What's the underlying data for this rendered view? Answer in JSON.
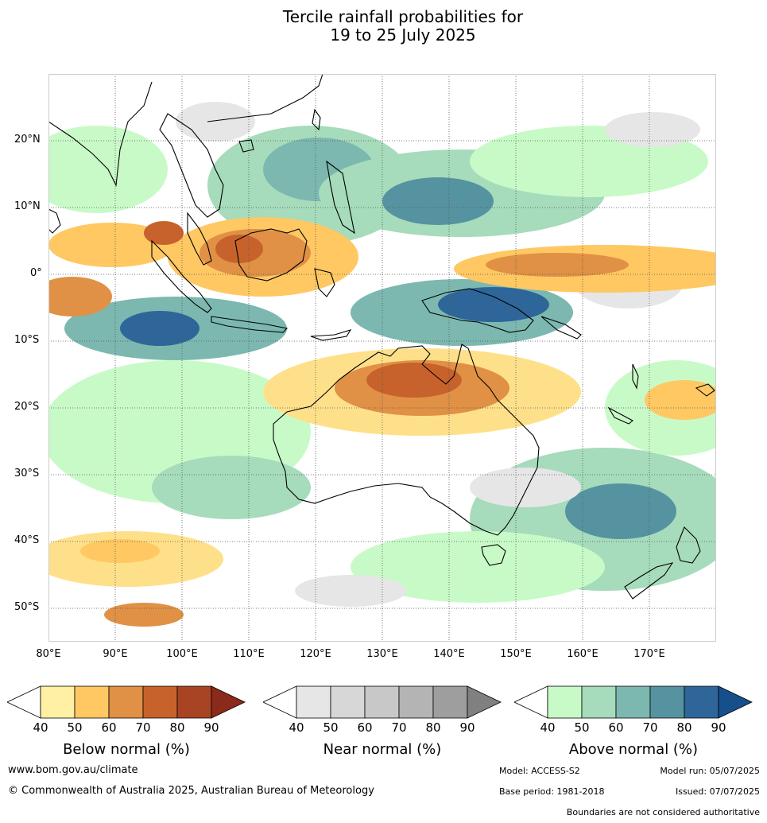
{
  "title": {
    "line1": "Tercile rainfall probabilities for",
    "line2": "19 to 25 July 2025"
  },
  "map": {
    "lat_labels": [
      "20°N",
      "10°N",
      "0°",
      "10°S",
      "20°S",
      "30°S",
      "40°S",
      "50°S"
    ],
    "lon_labels": [
      "80°E",
      "90°E",
      "100°E",
      "110°E",
      "120°E",
      "130°E",
      "140°E",
      "150°E",
      "160°E",
      "170°E"
    ],
    "lon_range": [
      80,
      180
    ],
    "lat_range": [
      -55,
      30
    ],
    "land_outline_color": "#000000"
  },
  "legend": {
    "tick_values": [
      "40",
      "50",
      "60",
      "70",
      "80",
      "90"
    ],
    "below": {
      "label": "Below normal (%)",
      "colors": [
        "#fff0a3",
        "#ffc862",
        "#e09145",
        "#c8622c",
        "#a84424",
        "#8b2a1a"
      ]
    },
    "near": {
      "label": "Near normal (%)",
      "colors": [
        "#e6e6e6",
        "#d7d7d7",
        "#c8c8c8",
        "#b4b4b4",
        "#9e9e9e",
        "#808080"
      ]
    },
    "above": {
      "label": "Above normal (%)",
      "colors": [
        "#c8fac8",
        "#a6dbbb",
        "#7cb8b0",
        "#5693a0",
        "#2e6699",
        "#164f8a"
      ]
    }
  },
  "footer": {
    "website": "www.bom.gov.au/climate",
    "copyright": "© Commonwealth of Australia 2025, Australian Bureau of Meteorology",
    "model": "Model: ACCESS-S2",
    "model_run": "Model run: 05/07/2025",
    "base_period": "Base period: 1981-2018",
    "issued": "Issued: 07/07/2025",
    "disclaimer": "Boundaries are not considered authoritative"
  }
}
